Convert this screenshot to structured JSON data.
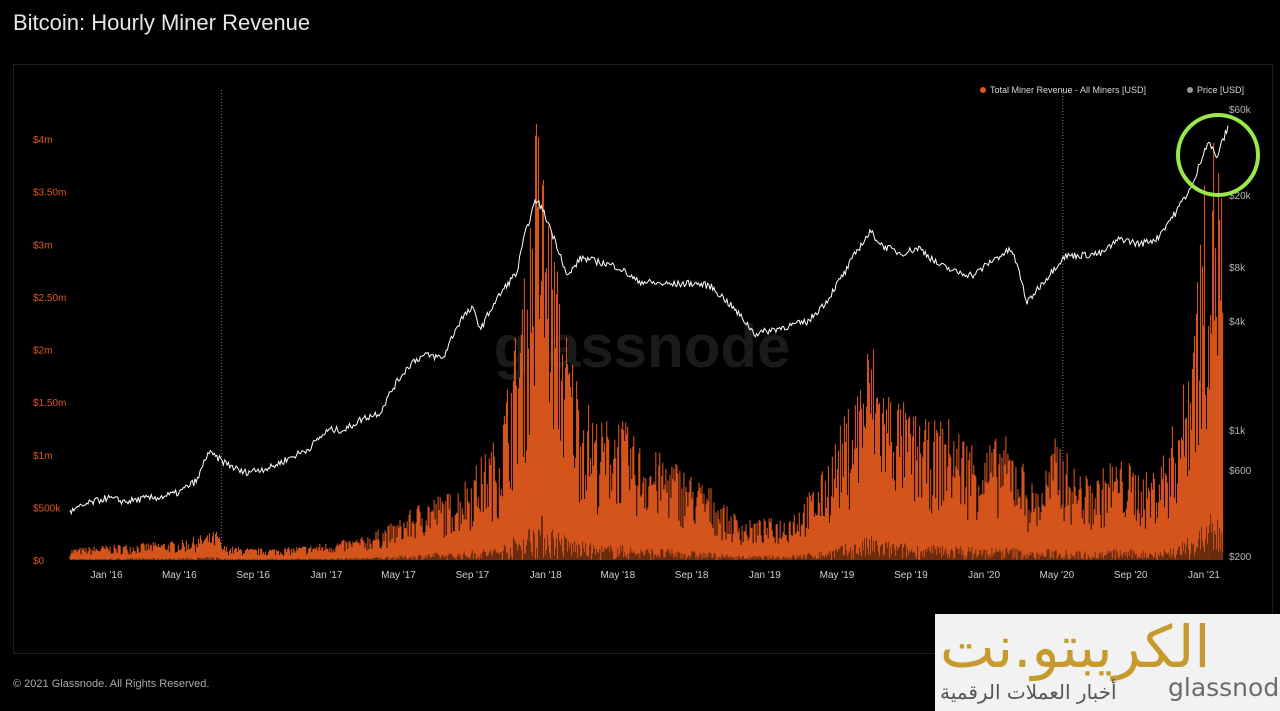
{
  "title": "Bitcoin: Hourly Miner Revenue",
  "footer": "© 2021 Glassnode. All Rights Reserved.",
  "watermark": "glassnode",
  "overlay": {
    "arabic_name": "الكريبتو.نت",
    "arabic_sub": "أخبار العملات الرقمية",
    "brand": "glassnode"
  },
  "colors": {
    "revenue": "#e0591c",
    "price": "#ffffff",
    "highlight_circle": "#9be84a",
    "left_axis": "#e0591c",
    "right_axis": "#b5b5b5"
  },
  "chart_data": {
    "type": "area",
    "title": "Bitcoin: Hourly Miner Revenue",
    "legend_position": "top-right",
    "grid": false,
    "legend": [
      {
        "name": "Total Miner Revenue - All Miners [USD]",
        "color": "#e0591c"
      },
      {
        "name": "Price [USD]",
        "color": "#9a9a9a"
      }
    ],
    "x_ticks": [
      "Jan '16",
      "May '16",
      "Sep '16",
      "Jan '17",
      "May '17",
      "Sep '17",
      "Jan '18",
      "May '18",
      "Sep '18",
      "Jan '19",
      "May '19",
      "Sep '19",
      "Jan '20",
      "May '20",
      "Sep '20",
      "Jan '21"
    ],
    "left_axis": {
      "ticks": [
        "$0",
        "$500k",
        "$1m",
        "$1.50m",
        "$2m",
        "$2.50m",
        "$3m",
        "$3.50m",
        "$4m"
      ],
      "ylim": [
        0,
        4000000
      ]
    },
    "right_axis": {
      "scale": "log",
      "ticks": [
        "$200",
        "$600",
        "$1k",
        "$4k",
        "$8k",
        "$20k",
        "$60k"
      ],
      "tick_values": [
        200,
        600,
        1000,
        4000,
        8000,
        20000,
        60000
      ]
    },
    "series": [
      {
        "name": "Total Miner Revenue - All Miners [USD]",
        "axis": "left",
        "type": "area",
        "x": [
          "2015-11-01",
          "2016-01-01",
          "2016-03-01",
          "2016-05-01",
          "2016-06-15",
          "2016-07-05",
          "2016-07-10",
          "2016-09-01",
          "2016-11-01",
          "2017-01-01",
          "2017-03-01",
          "2017-05-01",
          "2017-06-15",
          "2017-08-01",
          "2017-09-01",
          "2017-10-15",
          "2017-12-01",
          "2017-12-17",
          "2018-01-05",
          "2018-02-01",
          "2018-03-01",
          "2018-04-01",
          "2018-05-01",
          "2018-06-01",
          "2018-07-01",
          "2018-08-01",
          "2018-09-01",
          "2018-10-01",
          "2018-11-01",
          "2018-12-01",
          "2019-01-01",
          "2019-02-01",
          "2019-03-01",
          "2019-04-01",
          "2019-05-01",
          "2019-06-01",
          "2019-06-26",
          "2019-07-15",
          "2019-08-01",
          "2019-09-01",
          "2019-10-01",
          "2019-11-01",
          "2019-12-01",
          "2020-01-01",
          "2020-02-01",
          "2020-03-01",
          "2020-03-15",
          "2020-04-01",
          "2020-05-01",
          "2020-06-01",
          "2020-07-01",
          "2020-08-01",
          "2020-09-01",
          "2020-10-01",
          "2020-11-01",
          "2020-12-01",
          "2021-01-01",
          "2021-01-15",
          "2021-02-01"
        ],
        "values": [
          100000,
          130000,
          150000,
          170000,
          230000,
          260000,
          130000,
          100000,
          110000,
          150000,
          200000,
          350000,
          550000,
          600000,
          800000,
          1100000,
          2600000,
          4000000,
          3200000,
          2100000,
          1500000,
          1200000,
          1300000,
          1050000,
          950000,
          900000,
          750000,
          650000,
          450000,
          350000,
          360000,
          380000,
          500000,
          700000,
          1100000,
          1500000,
          2000000,
          1600000,
          1500000,
          1300000,
          1200000,
          1250000,
          1100000,
          1000000,
          1100000,
          950000,
          700000,
          650000,
          1100000,
          800000,
          700000,
          900000,
          850000,
          750000,
          1000000,
          1600000,
          3200000,
          3800000,
          3500000
        ]
      },
      {
        "name": "Price [USD]",
        "axis": "right",
        "type": "line",
        "x": [
          "2015-11-01",
          "2015-12-01",
          "2016-01-01",
          "2016-02-01",
          "2016-03-01",
          "2016-04-01",
          "2016-05-01",
          "2016-06-01",
          "2016-06-18",
          "2016-07-15",
          "2016-08-15",
          "2016-10-01",
          "2016-11-01",
          "2016-12-01",
          "2017-01-05",
          "2017-02-01",
          "2017-03-01",
          "2017-04-01",
          "2017-05-01",
          "2017-05-25",
          "2017-06-15",
          "2017-07-15",
          "2017-08-15",
          "2017-09-01",
          "2017-09-15",
          "2017-10-15",
          "2017-11-15",
          "2017-12-17",
          "2018-01-15",
          "2018-02-06",
          "2018-03-01",
          "2018-04-01",
          "2018-05-01",
          "2018-06-01",
          "2018-07-01",
          "2018-08-01",
          "2018-09-01",
          "2018-10-01",
          "2018-11-15",
          "2018-12-15",
          "2019-01-15",
          "2019-02-15",
          "2019-03-15",
          "2019-04-15",
          "2019-05-15",
          "2019-06-26",
          "2019-07-15",
          "2019-08-15",
          "2019-09-15",
          "2019-10-15",
          "2019-11-15",
          "2019-12-15",
          "2020-01-15",
          "2020-02-15",
          "2020-03-12",
          "2020-04-15",
          "2020-05-15",
          "2020-06-15",
          "2020-07-15",
          "2020-08-15",
          "2020-09-15",
          "2020-10-15",
          "2020-11-15",
          "2020-12-15",
          "2021-01-08",
          "2021-01-22",
          "2021-02-10"
        ],
        "values": [
          350,
          390,
          420,
          400,
          415,
          425,
          450,
          530,
          750,
          660,
          580,
          620,
          700,
          780,
          1000,
          1000,
          1150,
          1250,
          1900,
          2400,
          2600,
          2500,
          4200,
          4700,
          3600,
          5500,
          7500,
          19000,
          11500,
          7000,
          9000,
          8500,
          8000,
          6700,
          6500,
          6400,
          6500,
          6300,
          4500,
          3400,
          3600,
          3800,
          4000,
          5200,
          7500,
          12500,
          10500,
          9500,
          10200,
          8300,
          7500,
          7200,
          8700,
          10000,
          5000,
          7000,
          9200,
          9300,
          9500,
          11500,
          10700,
          11500,
          16000,
          23000,
          40000,
          32000,
          47000
        ]
      }
    ],
    "annotations": [
      {
        "type": "dotted-vline",
        "x": "2016-07-10"
      },
      {
        "type": "dotted-vline",
        "x": "2020-05-11"
      },
      {
        "type": "circle",
        "x": "2021-01-15",
        "note": "highlight"
      }
    ]
  }
}
